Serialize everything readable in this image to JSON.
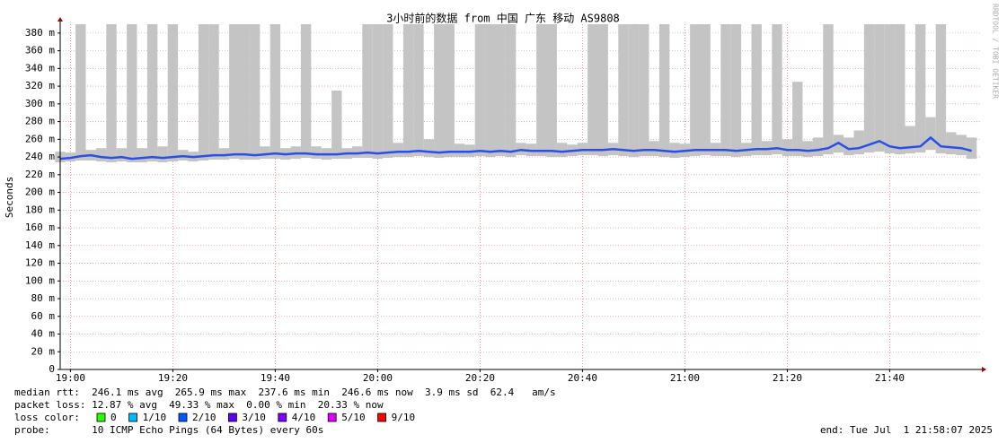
{
  "chart_data": {
    "type": "smokeping",
    "title": "3小时前的数据 from 中国 广东 移动 AS9808",
    "y_label": "Seconds",
    "watermark": "RRDTOOL / TOBI OETIKER",
    "xlim": [
      "18:58",
      "21:58"
    ],
    "xticks": [
      "19:00",
      "19:20",
      "19:40",
      "20:00",
      "20:20",
      "20:40",
      "21:00",
      "21:20",
      "21:40"
    ],
    "ylim": [
      0,
      0.39
    ],
    "yticks": [
      0,
      {
        "value": 0.02,
        "label": "20 m"
      },
      {
        "value": 0.04,
        "label": "40 m"
      },
      {
        "value": 0.06,
        "label": "60 m"
      },
      {
        "value": 0.08,
        "label": "80 m"
      },
      {
        "value": 0.1,
        "label": "100 m"
      },
      {
        "value": 0.12,
        "label": "120 m"
      },
      {
        "value": 0.14,
        "label": "140 m"
      },
      {
        "value": 0.16,
        "label": "160 m"
      },
      {
        "value": 0.18,
        "label": "180 m"
      },
      {
        "value": 0.2,
        "label": "200 m"
      },
      {
        "value": 0.22,
        "label": "220 m"
      },
      {
        "value": 0.24,
        "label": "240 m"
      },
      {
        "value": 0.26,
        "label": "260 m"
      },
      {
        "value": 0.28,
        "label": "280 m"
      },
      {
        "value": 0.3,
        "label": "300 m"
      },
      {
        "value": 0.32,
        "label": "320 m"
      },
      {
        "value": 0.34,
        "label": "340 m"
      },
      {
        "value": 0.36,
        "label": "360 m"
      },
      {
        "value": 0.38,
        "label": "380 m"
      }
    ],
    "grid": true,
    "grid_color": "#e08080",
    "smoke_color": "#c4c4c4",
    "median_color": "#2a4ee8",
    "x": [
      "18:58",
      "19:00",
      "19:02",
      "19:04",
      "19:06",
      "19:08",
      "19:10",
      "19:12",
      "19:14",
      "19:16",
      "19:18",
      "19:20",
      "19:22",
      "19:24",
      "19:26",
      "19:28",
      "19:30",
      "19:32",
      "19:34",
      "19:36",
      "19:38",
      "19:40",
      "19:42",
      "19:44",
      "19:46",
      "19:48",
      "19:50",
      "19:52",
      "19:54",
      "19:56",
      "19:58",
      "20:00",
      "20:02",
      "20:04",
      "20:06",
      "20:08",
      "20:10",
      "20:12",
      "20:14",
      "20:16",
      "20:18",
      "20:20",
      "20:22",
      "20:24",
      "20:26",
      "20:28",
      "20:30",
      "20:32",
      "20:34",
      "20:36",
      "20:38",
      "20:40",
      "20:42",
      "20:44",
      "20:46",
      "20:48",
      "20:50",
      "20:52",
      "20:54",
      "20:56",
      "20:58",
      "21:00",
      "21:02",
      "21:04",
      "21:06",
      "21:08",
      "21:10",
      "21:12",
      "21:14",
      "21:16",
      "21:18",
      "21:20",
      "21:22",
      "21:24",
      "21:26",
      "21:28",
      "21:30",
      "21:32",
      "21:34",
      "21:36",
      "21:38",
      "21:40",
      "21:42",
      "21:44",
      "21:46",
      "21:48",
      "21:50",
      "21:52",
      "21:54",
      "21:56"
    ],
    "median": [
      0.238,
      0.239,
      0.241,
      0.242,
      0.24,
      0.239,
      0.24,
      0.238,
      0.239,
      0.24,
      0.239,
      0.24,
      0.241,
      0.24,
      0.241,
      0.242,
      0.242,
      0.243,
      0.243,
      0.242,
      0.243,
      0.244,
      0.243,
      0.244,
      0.244,
      0.243,
      0.243,
      0.243,
      0.244,
      0.244,
      0.245,
      0.244,
      0.245,
      0.246,
      0.246,
      0.247,
      0.246,
      0.245,
      0.246,
      0.246,
      0.246,
      0.247,
      0.246,
      0.247,
      0.246,
      0.248,
      0.247,
      0.247,
      0.247,
      0.246,
      0.247,
      0.248,
      0.248,
      0.248,
      0.249,
      0.248,
      0.247,
      0.248,
      0.248,
      0.247,
      0.246,
      0.247,
      0.248,
      0.248,
      0.248,
      0.248,
      0.247,
      0.248,
      0.249,
      0.249,
      0.25,
      0.248,
      0.248,
      0.247,
      0.248,
      0.25,
      0.256,
      0.249,
      0.25,
      0.254,
      0.258,
      0.252,
      0.25,
      0.251,
      0.252,
      0.262,
      0.252,
      0.251,
      0.25,
      0.247
    ],
    "smoke_min": [
      0.234,
      0.235,
      0.236,
      0.236,
      0.235,
      0.234,
      0.235,
      0.234,
      0.234,
      0.235,
      0.234,
      0.235,
      0.236,
      0.235,
      0.236,
      0.237,
      0.237,
      0.238,
      0.237,
      0.237,
      0.238,
      0.238,
      0.237,
      0.238,
      0.239,
      0.238,
      0.237,
      0.238,
      0.238,
      0.239,
      0.239,
      0.238,
      0.239,
      0.24,
      0.24,
      0.241,
      0.24,
      0.239,
      0.24,
      0.24,
      0.24,
      0.241,
      0.24,
      0.241,
      0.24,
      0.242,
      0.241,
      0.241,
      0.24,
      0.24,
      0.241,
      0.242,
      0.242,
      0.241,
      0.242,
      0.241,
      0.24,
      0.241,
      0.241,
      0.24,
      0.239,
      0.24,
      0.241,
      0.242,
      0.241,
      0.241,
      0.24,
      0.241,
      0.242,
      0.242,
      0.243,
      0.241,
      0.241,
      0.24,
      0.241,
      0.243,
      0.245,
      0.242,
      0.243,
      0.245,
      0.246,
      0.244,
      0.243,
      0.244,
      0.245,
      0.248,
      0.244,
      0.243,
      0.242,
      0.238
    ],
    "smoke_max": [
      0.246,
      0.245,
      0.39,
      0.248,
      0.25,
      0.39,
      0.25,
      0.39,
      0.25,
      0.39,
      0.252,
      0.39,
      0.248,
      0.246,
      0.39,
      0.39,
      0.25,
      0.39,
      0.39,
      0.39,
      0.252,
      0.39,
      0.25,
      0.252,
      0.39,
      0.252,
      0.25,
      0.315,
      0.25,
      0.252,
      0.39,
      0.39,
      0.39,
      0.256,
      0.39,
      0.39,
      0.26,
      0.39,
      0.39,
      0.255,
      0.254,
      0.39,
      0.39,
      0.39,
      0.39,
      0.256,
      0.255,
      0.39,
      0.39,
      0.256,
      0.254,
      0.256,
      0.39,
      0.39,
      0.256,
      0.39,
      0.39,
      0.39,
      0.258,
      0.39,
      0.256,
      0.255,
      0.39,
      0.39,
      0.256,
      0.39,
      0.39,
      0.256,
      0.39,
      0.258,
      0.39,
      0.26,
      0.325,
      0.258,
      0.262,
      0.39,
      0.265,
      0.262,
      0.27,
      0.39,
      0.39,
      0.39,
      0.39,
      0.275,
      0.39,
      0.285,
      0.39,
      0.268,
      0.265,
      0.262
    ],
    "footer": {
      "median_rtt": "median rtt:  246.1 ms avg  265.9 ms max  237.6 ms min  246.6 ms now  3.9 ms sd  62.4   am/s",
      "packet_loss": "packet loss: 12.87 % avg  49.33 % max  0.00 % min  20.33 % now",
      "loss_color_label": "loss color:",
      "probe": "probe:       10 ICMP Echo Pings (64 Bytes) every 60s",
      "end": "end: Tue Jul  1 21:58:07 2025"
    },
    "loss_legend": [
      {
        "label": "0",
        "color": "#26ff00"
      },
      {
        "label": "1/10",
        "color": "#00b8ff"
      },
      {
        "label": "2/10",
        "color": "#0059ff"
      },
      {
        "label": "3/10",
        "color": "#5e00ff"
      },
      {
        "label": "4/10",
        "color": "#7e00ff"
      },
      {
        "label": "5/10",
        "color": "#dd00ff"
      },
      {
        "label": "9/10",
        "color": "#ff0000"
      }
    ]
  }
}
